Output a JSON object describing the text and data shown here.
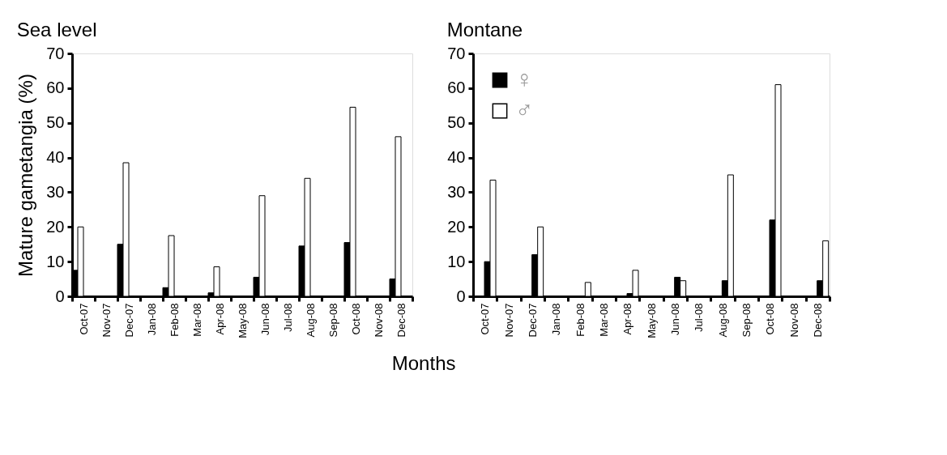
{
  "chart_data": [
    {
      "type": "bar",
      "title": "Sea level",
      "ylabel": "Mature gametangia (%)",
      "xlabel": "Months",
      "categories": [
        "Oct-07",
        "Nov-07",
        "Dec-07",
        "Jan-08",
        "Feb-08",
        "Mar-08",
        "Apr-08",
        "May-08",
        "Jun-08",
        "Jul-08",
        "Aug-08",
        "Sep-08",
        "Oct-08",
        "Nov-08",
        "Dec-08"
      ],
      "series": [
        {
          "color": "#000000",
          "values": [
            7.5,
            null,
            15,
            null,
            2.5,
            null,
            1,
            null,
            5.5,
            null,
            14.5,
            null,
            15.5,
            null,
            5
          ]
        },
        {
          "color": "#ffffff",
          "values": [
            20,
            null,
            38.5,
            null,
            17.5,
            null,
            8.5,
            null,
            29,
            null,
            34,
            null,
            54.5,
            null,
            46
          ]
        }
      ],
      "ylim": [
        0,
        70
      ],
      "yticks": [
        0,
        10,
        20,
        30,
        40,
        50,
        60,
        70
      ],
      "grid": false,
      "legend": false
    },
    {
      "type": "bar",
      "title": "Montane",
      "categories": [
        "Oct-07",
        "Nov-07",
        "Dec-07",
        "Jan-08",
        "Feb-08",
        "Mar-08",
        "Apr-08",
        "May-08",
        "Jun-08",
        "Jul-08",
        "Aug-08",
        "Sep-08",
        "Oct-08",
        "Nov-08",
        "Dec-08"
      ],
      "series": [
        {
          "name": "♀",
          "color": "#000000",
          "values": [
            10,
            null,
            12,
            null,
            0,
            null,
            0.8,
            null,
            5.5,
            null,
            4.5,
            null,
            22,
            null,
            4.5
          ]
        },
        {
          "name": "♂",
          "color": "#ffffff",
          "values": [
            33.5,
            null,
            20,
            null,
            4,
            null,
            7.5,
            null,
            4.5,
            null,
            35,
            null,
            61,
            null,
            16
          ]
        }
      ],
      "ylim": [
        0,
        70
      ],
      "yticks": [
        0,
        10,
        20,
        30,
        40,
        50,
        60,
        70
      ],
      "grid": false,
      "legend": "top left"
    }
  ]
}
